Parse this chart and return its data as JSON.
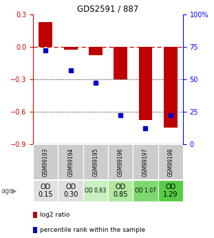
{
  "title": "GDS2591 / 887",
  "samples": [
    "GSM99193",
    "GSM99194",
    "GSM99195",
    "GSM99196",
    "GSM99197",
    "GSM99198"
  ],
  "log2_ratio": [
    0.23,
    -0.03,
    -0.08,
    -0.3,
    -0.68,
    -0.75
  ],
  "percentile_rank": [
    72,
    57,
    47,
    22,
    12,
    22
  ],
  "bar_color": "#c00000",
  "dot_color": "#0000cc",
  "ylim_left": [
    -0.9,
    0.3
  ],
  "ylim_right": [
    0,
    100
  ],
  "yticks_left": [
    0.3,
    0.0,
    -0.3,
    -0.6,
    -0.9
  ],
  "yticks_right": [
    100,
    75,
    50,
    25,
    0
  ],
  "dotted_lines": [
    -0.3,
    -0.6
  ],
  "age_labels": [
    "OD\n0.15",
    "OD\n0.30",
    "OD 0.63",
    "OD\n0.85",
    "OD 1.07",
    "OD\n1.29"
  ],
  "age_bg_colors": [
    "#e0e0e0",
    "#e0e0e0",
    "#c8f0c0",
    "#b0e8a0",
    "#7dd870",
    "#55cc44"
  ],
  "sample_bg_color": "#cccccc",
  "legend_labels": [
    "log2 ratio",
    "percentile rank within the sample"
  ]
}
